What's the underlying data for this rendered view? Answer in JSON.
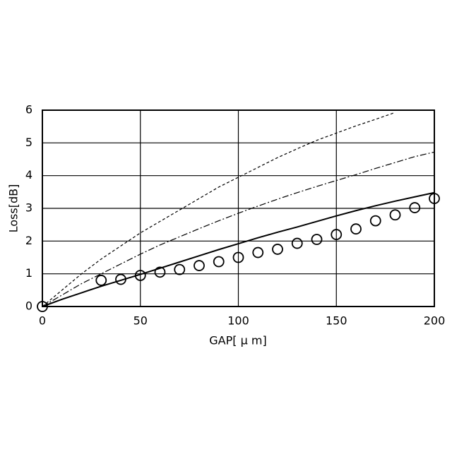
{
  "chart_data": {
    "type": "line",
    "xlabel": "GAP[ μ m]",
    "ylabel": "Loss[dB]",
    "x": [
      0,
      10,
      20,
      30,
      40,
      50,
      60,
      70,
      80,
      90,
      100,
      110,
      120,
      130,
      140,
      150,
      160,
      170,
      180,
      190,
      200
    ],
    "series": [
      {
        "color": "#000000",
        "style": "solid",
        "values": [
          0,
          0.22,
          0.42,
          0.62,
          0.8,
          0.98,
          1.17,
          1.36,
          1.55,
          1.74,
          1.92,
          2.1,
          2.27,
          2.43,
          2.6,
          2.77,
          2.93,
          3.08,
          3.22,
          3.35,
          3.48
        ]
      },
      {
        "color": "#000000",
        "style": "dashed",
        "values": [
          0,
          0.5,
          1.0,
          1.45,
          1.85,
          2.25,
          2.6,
          2.95,
          3.3,
          3.65,
          3.95,
          4.25,
          4.55,
          4.82,
          5.08,
          5.3,
          5.52,
          5.72,
          5.93,
          null,
          null
        ]
      },
      {
        "color": "#000000",
        "style": "dashdot",
        "values": [
          0,
          0.35,
          0.7,
          1.0,
          1.3,
          1.6,
          1.88,
          2.13,
          2.38,
          2.62,
          2.85,
          3.07,
          3.28,
          3.48,
          3.67,
          3.85,
          4.03,
          4.22,
          4.4,
          4.58,
          4.72
        ]
      },
      {
        "color": "#000000",
        "style": "circles",
        "values": [
          0,
          null,
          null,
          0.8,
          0.83,
          0.95,
          1.05,
          1.13,
          1.25,
          1.37,
          1.5,
          1.65,
          1.75,
          1.93,
          2.05,
          2.2,
          2.37,
          2.62,
          2.8,
          3.02,
          3.3
        ]
      }
    ],
    "xlim": [
      0,
      200
    ],
    "xticks": [
      0,
      50,
      100,
      150,
      200
    ],
    "ylim": [
      0,
      6
    ],
    "yticks": [
      0,
      1,
      2,
      3,
      4,
      5,
      6
    ],
    "grid": true
  }
}
